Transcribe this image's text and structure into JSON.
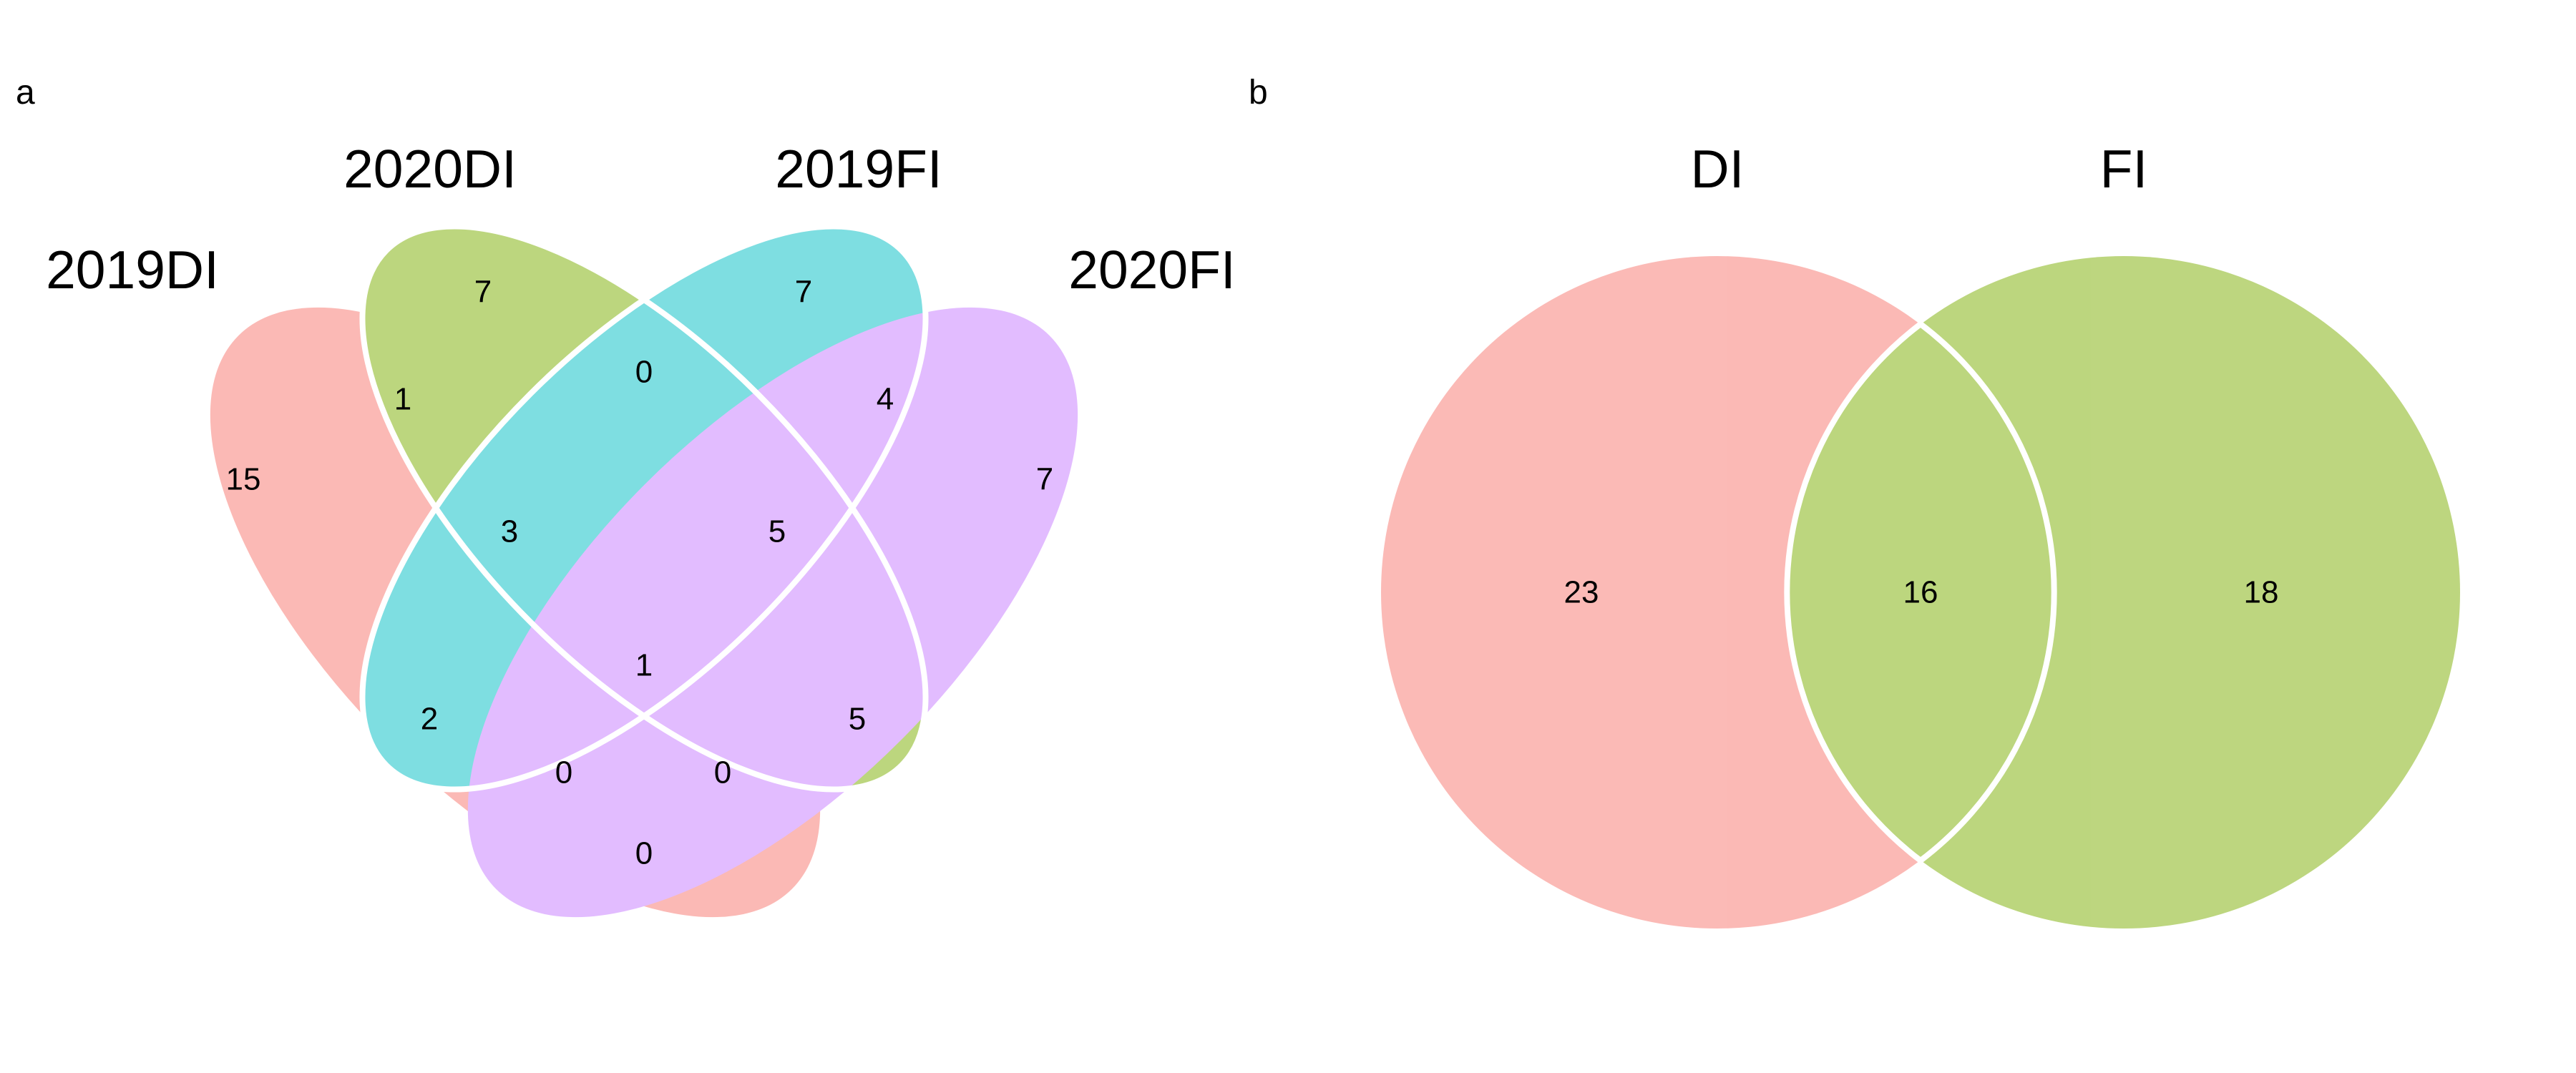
{
  "panels": {
    "a": {
      "panel_label": "a",
      "sets": [
        {
          "label": "2019DI",
          "color": "#F8766D"
        },
        {
          "label": "2020DI",
          "color": "#7CAE00"
        },
        {
          "label": "2019FI",
          "color": "#00BFC4"
        },
        {
          "label": "2020FI",
          "color": "#C77CFF"
        }
      ],
      "region_counts": {
        "only_2019DI": "15",
        "only_2020DI": "7",
        "only_2019FI": "7",
        "only_2020FI": "7",
        "2019DI_2020DI": "1",
        "2020DI_2019FI": "0",
        "2019FI_2020FI": "4",
        "2019DI_2020DI_2019FI": "3",
        "2020DI_2019FI_2020FI": "5",
        "all_four": "1",
        "2019DI_2019FI": "2",
        "2020DI_2020FI": "5",
        "2019DI_2019FI_2020FI": "0",
        "2019DI_2020DI_2020FI": "0",
        "2019DI_2020FI": "0"
      }
    },
    "b": {
      "panel_label": "b",
      "sets": [
        {
          "label": "DI",
          "color": "#F8766D"
        },
        {
          "label": "FI",
          "color": "#7CAE00"
        }
      ],
      "region_counts": {
        "only_DI": "23",
        "DI_FI": "16",
        "only_FI": "18"
      }
    }
  }
}
